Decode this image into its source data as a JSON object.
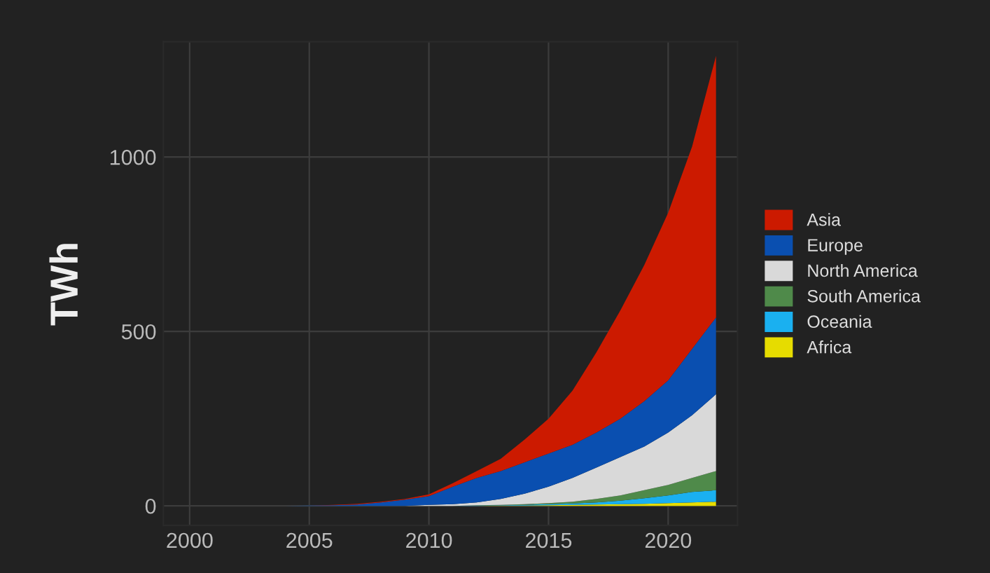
{
  "chart_data": {
    "type": "area",
    "stacked": true,
    "ylabel": "TWh",
    "x": [
      2000,
      2001,
      2002,
      2003,
      2004,
      2005,
      2006,
      2007,
      2008,
      2009,
      2010,
      2011,
      2012,
      2013,
      2014,
      2015,
      2016,
      2017,
      2018,
      2019,
      2020,
      2021,
      2022
    ],
    "series": [
      {
        "name": "Asia",
        "color": "#cc1a00",
        "values": [
          0,
          0,
          0,
          0,
          0,
          0,
          1,
          2,
          2,
          2,
          5,
          10,
          20,
          35,
          65,
          100,
          155,
          230,
          310,
          390,
          480,
          580,
          750
        ]
      },
      {
        "name": "Europe",
        "color": "#0a4fb0",
        "values": [
          0,
          0,
          0,
          0,
          0,
          1,
          2,
          4,
          10,
          18,
          25,
          50,
          70,
          80,
          90,
          95,
          95,
          100,
          110,
          130,
          150,
          190,
          220
        ]
      },
      {
        "name": "North America",
        "color": "#d9d9d9",
        "values": [
          0,
          0,
          0,
          0,
          0,
          0,
          0,
          0,
          0,
          0,
          3,
          5,
          8,
          17,
          30,
          47,
          68,
          90,
          110,
          125,
          150,
          180,
          220
        ]
      },
      {
        "name": "South America",
        "color": "#4f8a4a",
        "values": [
          0,
          0,
          0,
          0,
          0,
          0,
          0,
          0,
          0,
          0,
          0,
          0,
          1,
          1,
          2,
          3,
          5,
          10,
          15,
          23,
          30,
          40,
          55
        ]
      },
      {
        "name": "Oceania",
        "color": "#1ab0f0",
        "values": [
          0,
          0,
          0,
          0,
          0,
          0,
          0,
          0,
          0,
          0,
          0,
          0,
          1,
          1,
          2,
          3,
          4,
          6,
          10,
          16,
          22,
          30,
          33
        ]
      },
      {
        "name": "Africa",
        "color": "#e6dc00",
        "values": [
          0,
          0,
          0,
          0,
          0,
          0,
          0,
          0,
          0,
          0,
          0,
          0,
          0,
          1,
          1,
          2,
          3,
          4,
          5,
          6,
          8,
          10,
          12
        ]
      }
    ],
    "xlim": [
      1998.9,
      2022.9
    ],
    "xticks": [
      2000,
      2005,
      2010,
      2015,
      2020
    ],
    "ylim": [
      -56,
      1330
    ],
    "yticks": [
      0,
      500,
      1000
    ],
    "grid": true,
    "legend": "right"
  }
}
